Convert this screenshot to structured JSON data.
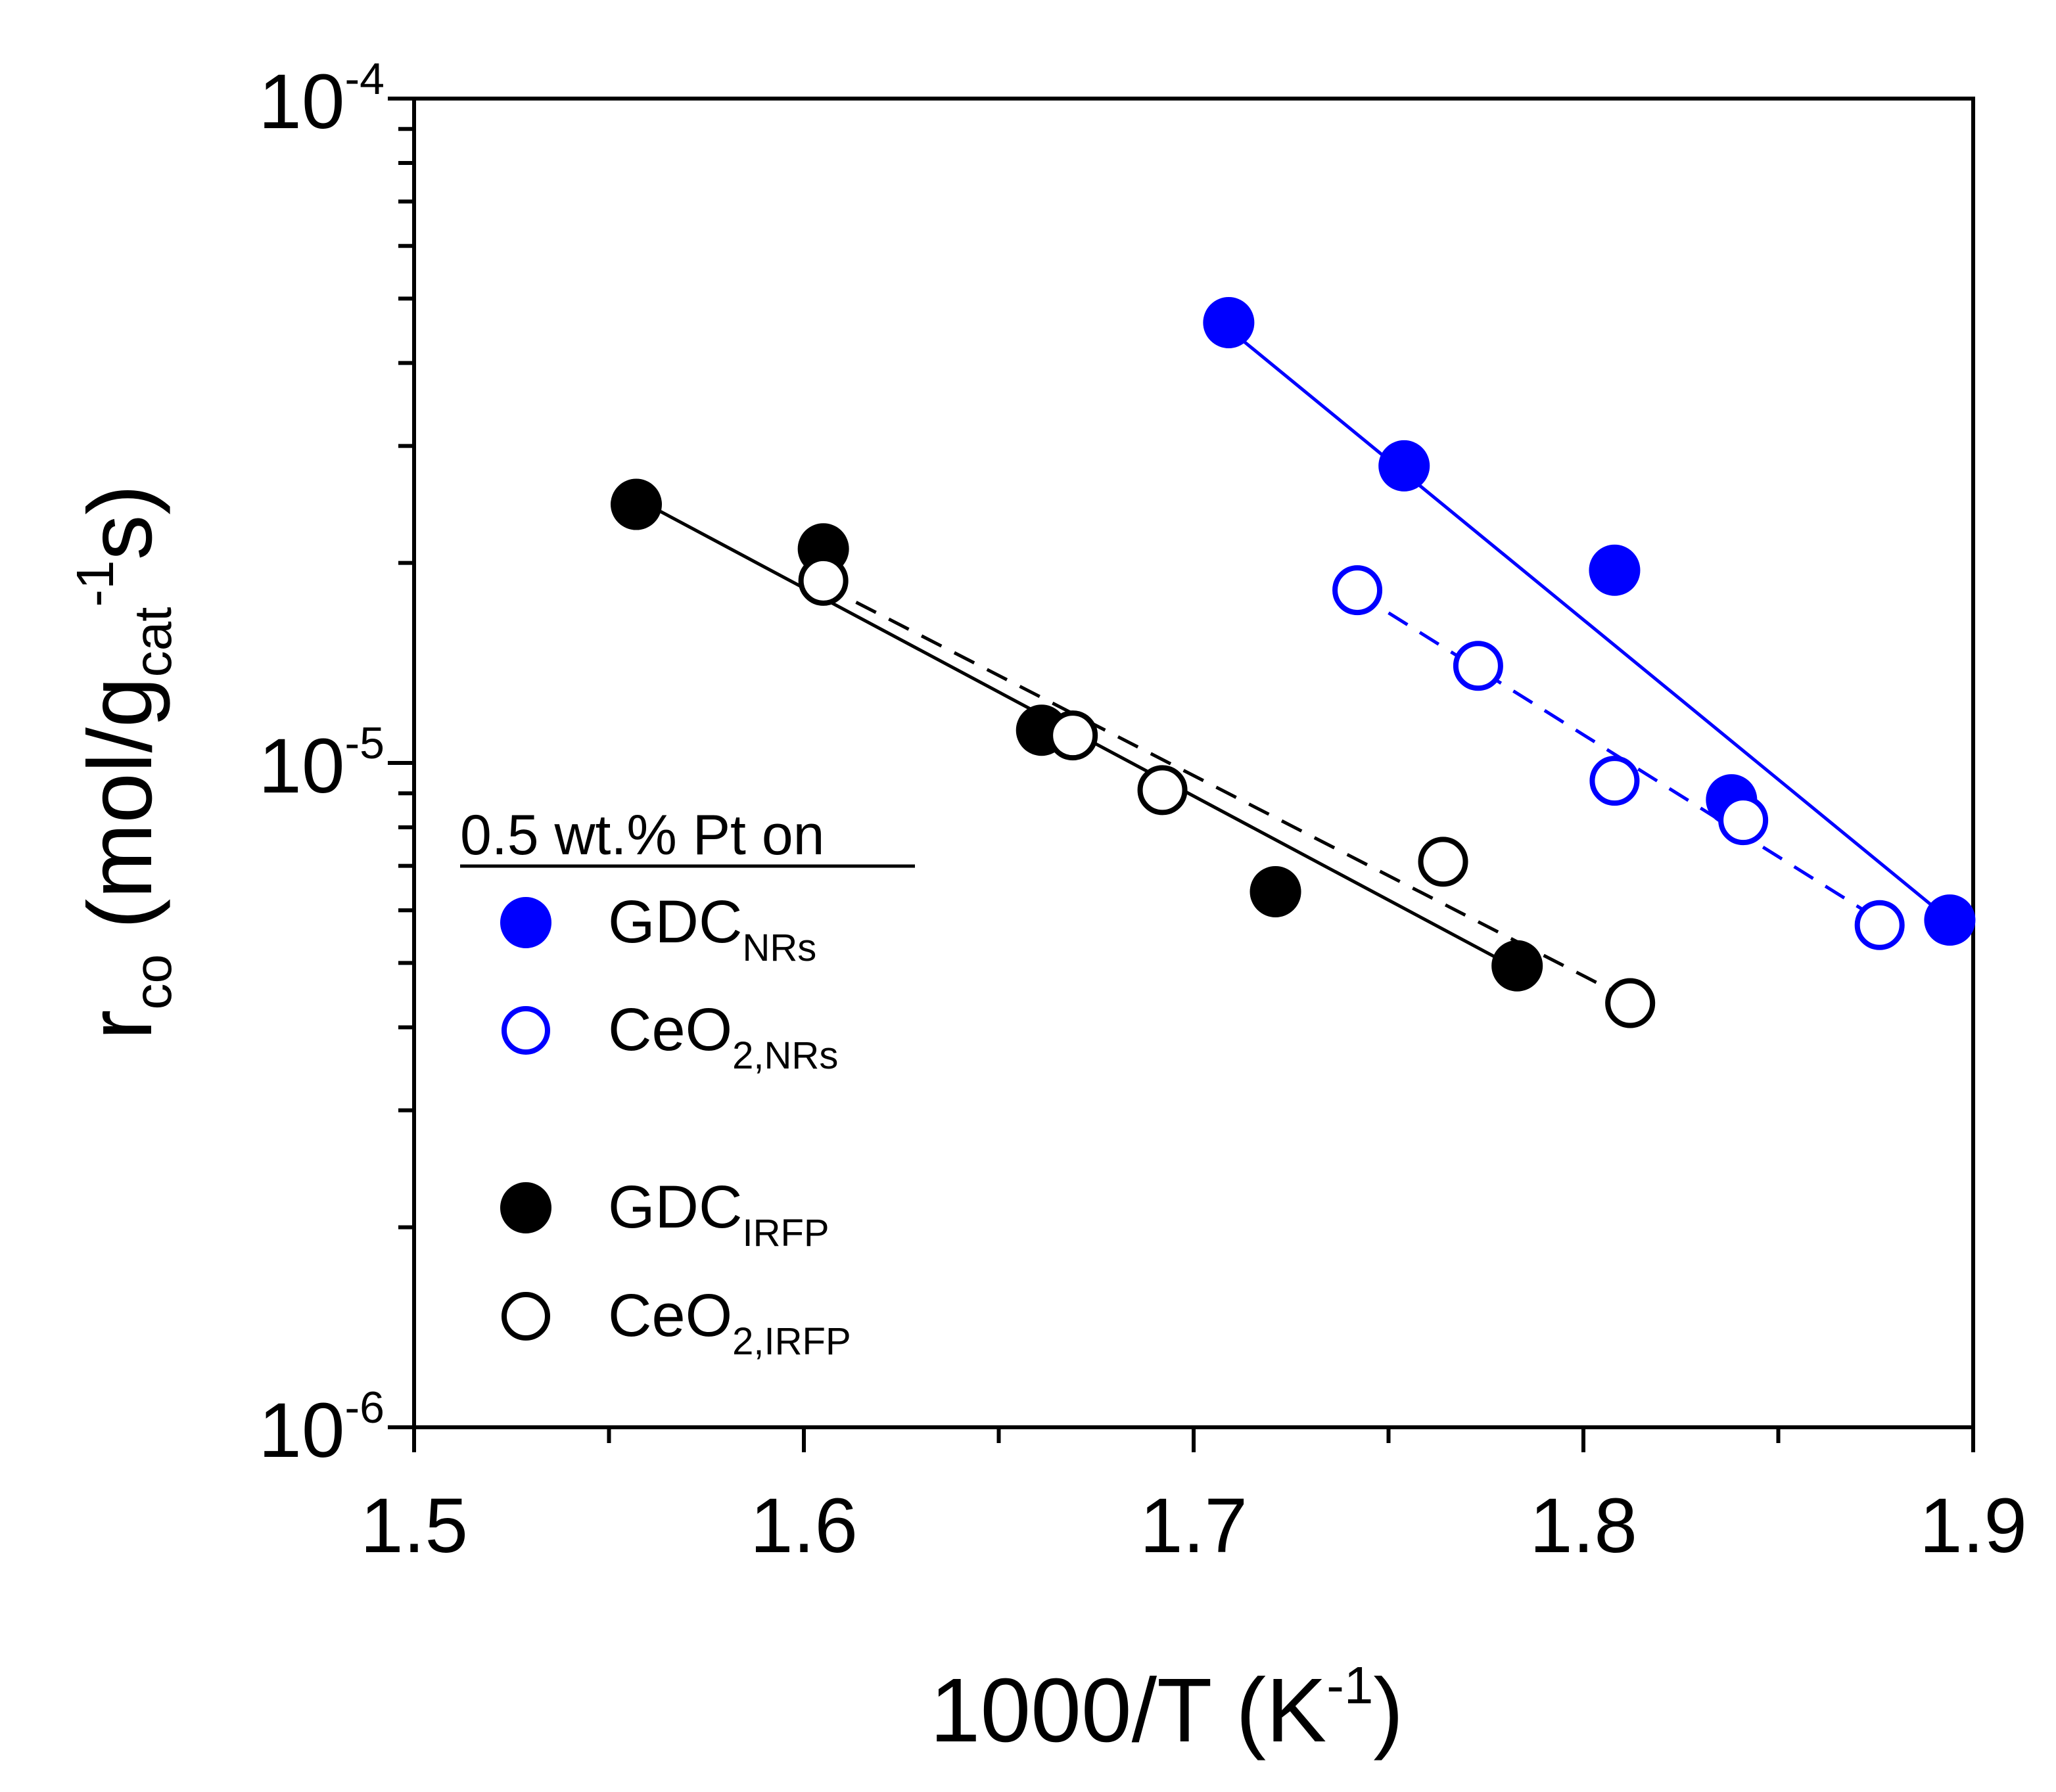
{
  "chart_data": {
    "type": "scatter",
    "title": "",
    "xlabel": {
      "main": "1000/T (K",
      "sup": "-1",
      "close": ")"
    },
    "ylabel": {
      "r": "r",
      "r_sub": "co",
      "open": " (mol/g",
      "g_sub": "cat",
      "s": "s",
      "s_sup": "-1",
      "close": ")"
    },
    "xlim": [
      1.5,
      1.9
    ],
    "ylim": [
      1e-06,
      0.0001
    ],
    "yscale": "log",
    "x_ticks": [
      {
        "value": 1.5,
        "label": "1.5"
      },
      {
        "value": 1.6,
        "label": "1.6"
      },
      {
        "value": 1.7,
        "label": "1.7"
      },
      {
        "value": 1.8,
        "label": "1.8"
      },
      {
        "value": 1.9,
        "label": "1.9"
      }
    ],
    "y_ticks": [
      {
        "value": 0.0001,
        "base": "10",
        "exp": "-4"
      },
      {
        "value": 1e-05,
        "base": "10",
        "exp": "-5"
      },
      {
        "value": 1e-06,
        "base": "10",
        "exp": "-6"
      }
    ],
    "legend": {
      "title": "0.5 wt.% Pt on",
      "position": "left-middle",
      "entries": [
        {
          "series": 0,
          "base": "GDC",
          "sub": "NRs"
        },
        {
          "series": 1,
          "base": "CeO",
          "sub": "2,NRs"
        },
        {
          "series": 2,
          "base": "GDC",
          "sub": "IRFP"
        },
        {
          "series": 3,
          "base": "CeO",
          "sub": "2,IRFP"
        }
      ]
    },
    "series": [
      {
        "name": "GDC_NRs",
        "color": "#0000ff",
        "marker": "filled-circle",
        "line_style": "solid",
        "x": [
          1.709,
          1.754,
          1.808,
          1.838,
          1.894
        ],
        "y": [
          4.6e-05,
          2.8e-05,
          1.95e-05,
          8.8e-06,
          5.8e-06
        ],
        "fit": {
          "x": [
            1.707,
            1.894
          ],
          "y": [
            4.6e-05,
            5.8e-06
          ]
        }
      },
      {
        "name": "CeO2_NRs",
        "color": "#0000ff",
        "marker": "open-circle",
        "line_style": "dashed",
        "x": [
          1.742,
          1.773,
          1.808,
          1.841,
          1.876
        ],
        "y": [
          1.82e-05,
          1.4e-05,
          9.4e-06,
          8.2e-06,
          5.7e-06
        ],
        "fit": {
          "x": [
            1.742,
            1.876
          ],
          "y": [
            1.8e-05,
            5.8e-06
          ]
        }
      },
      {
        "name": "GDC_IRFP",
        "color": "#000000",
        "marker": "filled-circle",
        "line_style": "solid",
        "x": [
          1.557,
          1.605,
          1.661,
          1.721,
          1.783
        ],
        "y": [
          2.45e-05,
          2.1e-05,
          1.12e-05,
          6.4e-06,
          4.95e-06
        ],
        "fit": {
          "x": [
            1.557,
            1.783
          ],
          "y": [
            2.5e-05,
            4.9e-06
          ]
        }
      },
      {
        "name": "CeO2_IRFP",
        "color": "#000000",
        "marker": "open-circle",
        "line_style": "dashed",
        "x": [
          1.605,
          1.669,
          1.692,
          1.764,
          1.812
        ],
        "y": [
          1.88e-05,
          1.1e-05,
          9.1e-06,
          7.1e-06,
          4.35e-06
        ],
        "fit": {
          "x": [
            1.605,
            1.812
          ],
          "y": [
            1.85e-05,
            4.4e-06
          ]
        }
      }
    ]
  }
}
